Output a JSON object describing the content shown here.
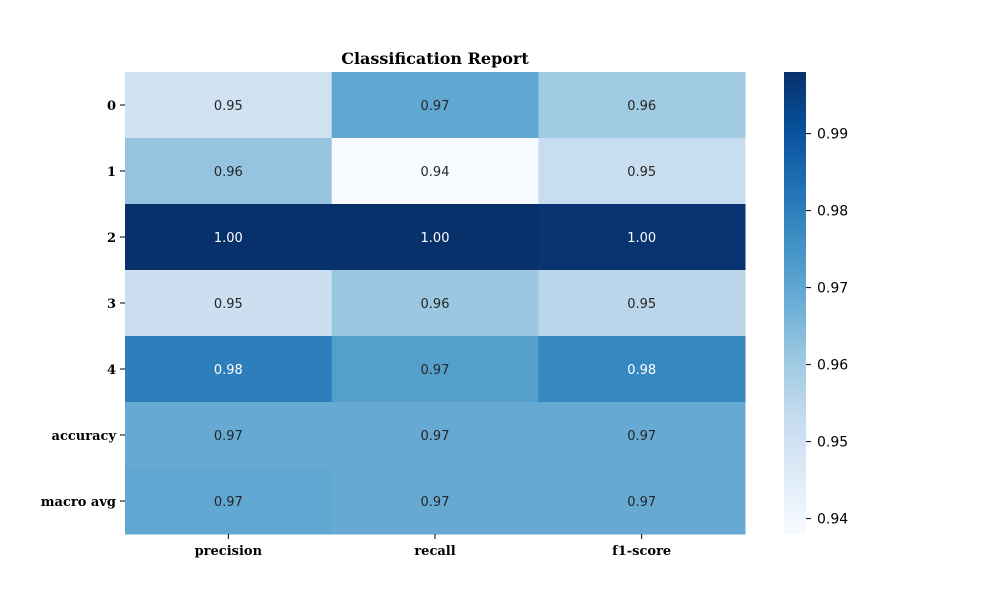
{
  "chart_data": {
    "type": "heatmap",
    "title": "Classification Report",
    "rows": [
      "0",
      "1",
      "2",
      "3",
      "4",
      "accuracy",
      "macro avg"
    ],
    "columns": [
      "precision",
      "recall",
      "f1-score"
    ],
    "values": [
      [
        0.95,
        0.97,
        0.96
      ],
      [
        0.962,
        0.938,
        0.952
      ],
      [
        0.998,
        0.998,
        0.997
      ],
      [
        0.951,
        0.961,
        0.955
      ],
      [
        0.98,
        0.972,
        0.978
      ],
      [
        0.969,
        0.969,
        0.969
      ],
      [
        0.97,
        0.969,
        0.969
      ]
    ],
    "labels": [
      [
        "0.95",
        "0.97",
        "0.96"
      ],
      [
        "0.96",
        "0.94",
        "0.95"
      ],
      [
        "1.00",
        "1.00",
        "1.00"
      ],
      [
        "0.95",
        "0.96",
        "0.95"
      ],
      [
        "0.98",
        "0.97",
        "0.98"
      ],
      [
        "0.97",
        "0.97",
        "0.97"
      ],
      [
        "0.97",
        "0.97",
        "0.97"
      ]
    ],
    "colorbar": {
      "colormap": "Blues",
      "range": [
        0.938,
        0.998
      ],
      "ticks": [
        0.94,
        0.95,
        0.96,
        0.97,
        0.98,
        0.99
      ],
      "tick_labels": [
        "0.94",
        "0.95",
        "0.96",
        "0.97",
        "0.98",
        "0.99"
      ]
    }
  }
}
